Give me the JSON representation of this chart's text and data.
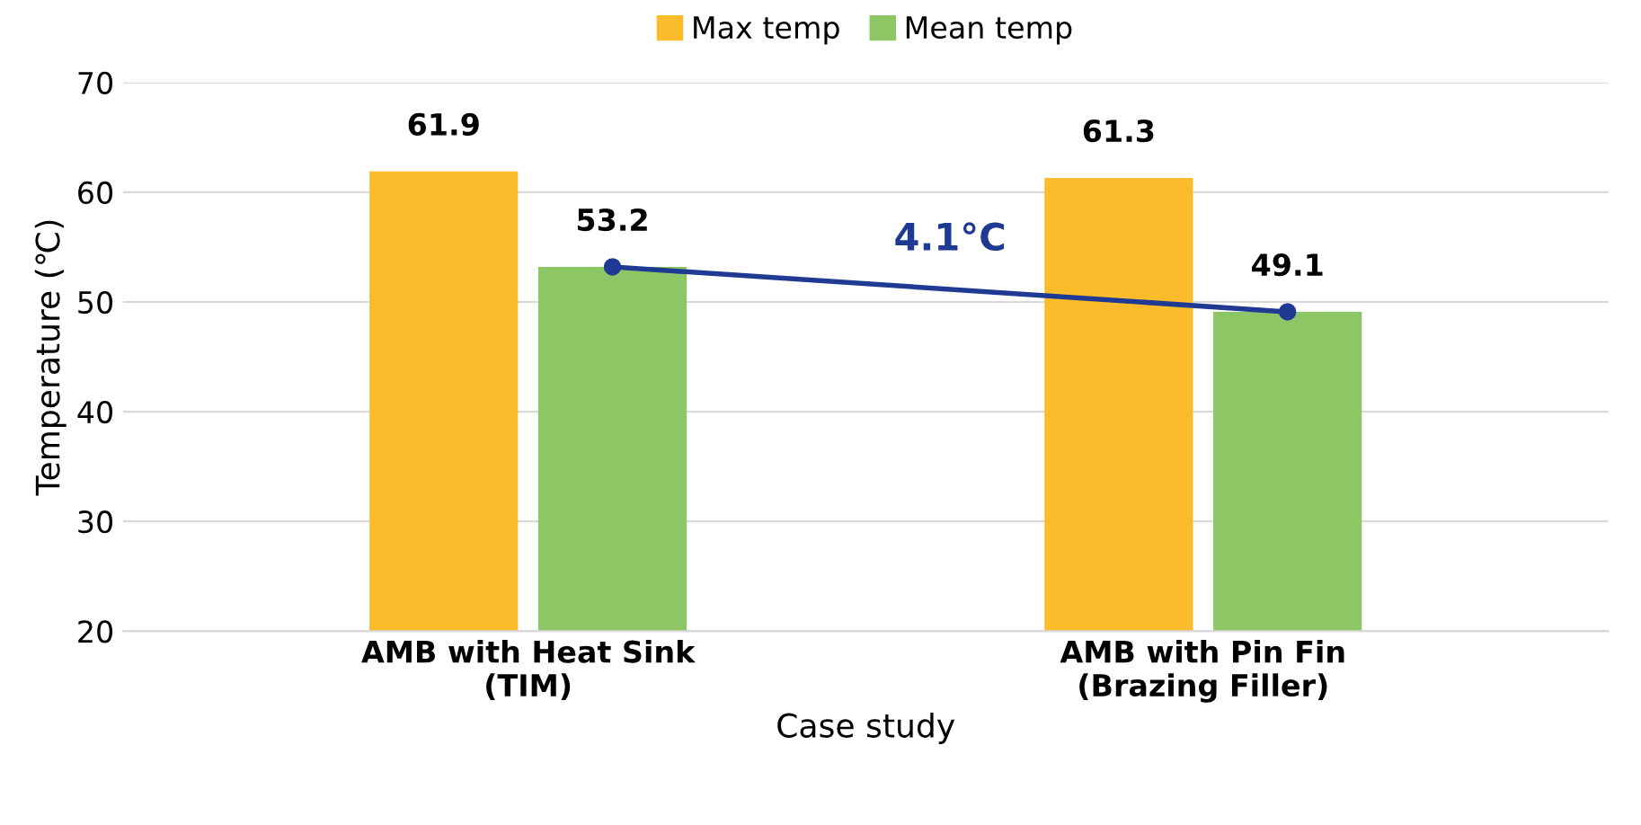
{
  "chart_data": {
    "type": "bar",
    "xlabel": "Case study",
    "ylabel": "Temperature (℃)",
    "categories": [
      "AMB with Heat Sink\n(TIM)",
      "AMB with Pin Fin\n(Brazing Filler)"
    ],
    "series": [
      {
        "name": "Max temp",
        "color": "#fbbc2c",
        "values": [
          61.9,
          61.3
        ],
        "value_labels": [
          "61.9",
          "61.3"
        ]
      },
      {
        "name": "Mean temp",
        "color": "#8cc665",
        "values": [
          53.2,
          49.1
        ],
        "value_labels": [
          "53.2",
          "49.1"
        ]
      },
      {
        "type": "line",
        "color": "#1f3a93",
        "values": [
          53.2,
          49.1
        ],
        "marker": "circle"
      }
    ],
    "annotations": [
      "4.1°C"
    ],
    "ylim": [
      20,
      70
    ],
    "yticks": [
      20,
      30,
      40,
      50,
      60,
      70
    ],
    "grid": "y",
    "legend": "top"
  }
}
